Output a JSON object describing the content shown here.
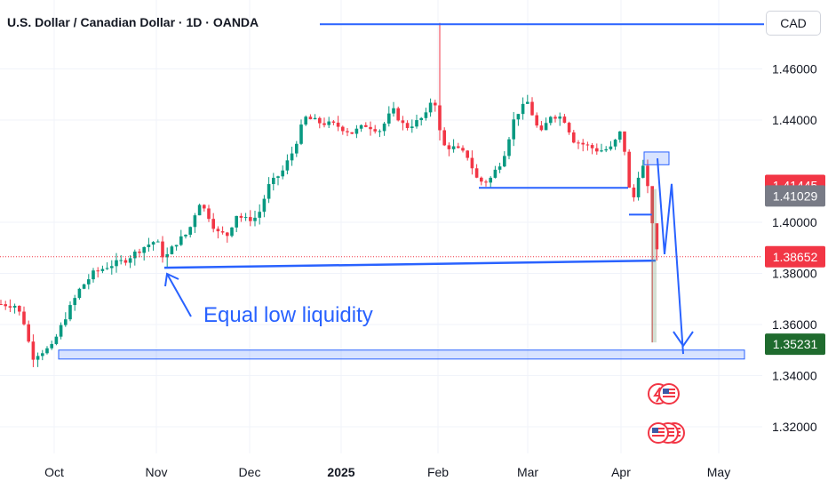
{
  "header": {
    "title": "U.S. Dollar / Canadian Dollar · 1D · OANDA"
  },
  "axis": {
    "currency": "CAD"
  },
  "chart_data": {
    "type": "candlestick",
    "title": "U.S. Dollar / Canadian Dollar · 1D · OANDA",
    "x_ticks": [
      "Oct",
      "Nov",
      "Dec",
      "2025",
      "Feb",
      "Mar",
      "Apr",
      "May"
    ],
    "y_ticks": [
      "1.32000",
      "1.34000",
      "1.36000",
      "1.38000",
      "1.40000",
      "1.44000",
      "1.46000"
    ],
    "ylim": [
      1.3125,
      1.4825
    ],
    "grid": true,
    "price_labels": [
      {
        "value": "1.41445",
        "color": "#f23645"
      },
      {
        "value": "1.41029",
        "color": "#787b86"
      },
      {
        "value": "1.38652",
        "color": "#f23645"
      },
      {
        "value": "1.35231",
        "color": "#1f6b2e"
      }
    ],
    "annotation": "Equal low liquidity",
    "up_color": "#089981",
    "down_color": "#f23645",
    "drawing_color": "#2962ff"
  }
}
